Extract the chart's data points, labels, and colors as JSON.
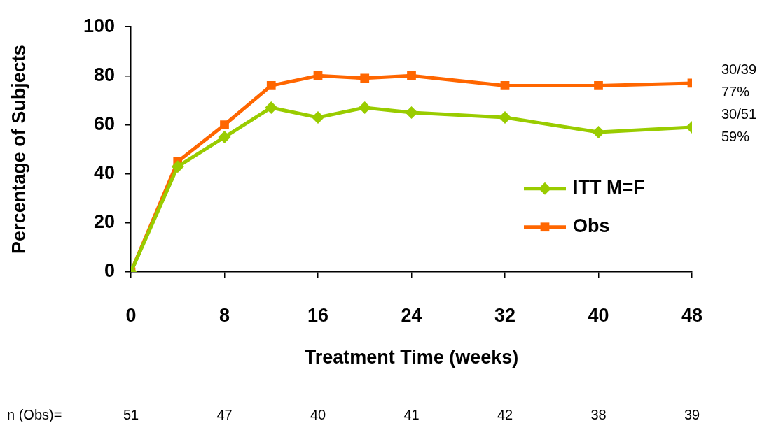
{
  "chart_data": {
    "type": "line",
    "xlabel": "Treatment Time (weeks)",
    "ylabel": "Percentage of Subjects",
    "x": [
      0,
      4,
      8,
      12,
      16,
      20,
      24,
      32,
      40,
      48
    ],
    "xlim": [
      0,
      48
    ],
    "xticks": [
      0,
      8,
      16,
      24,
      32,
      40,
      48
    ],
    "ylim": [
      0,
      100
    ],
    "yticks": [
      0,
      20,
      40,
      60,
      80,
      100
    ],
    "grid": false,
    "legend": "right",
    "line_style": "solid",
    "series": [
      {
        "name": "ITT M=F",
        "color": "#99cc00",
        "marker": "diamond",
        "values": [
          0,
          43,
          55,
          67,
          63,
          67,
          65,
          63,
          57,
          59
        ]
      },
      {
        "name": "Obs",
        "color": "#ff6600",
        "marker": "square",
        "values": [
          0,
          45,
          60,
          76,
          80,
          79,
          80,
          76,
          76,
          77
        ]
      }
    ],
    "annotations": [
      {
        "text": "30/39\n77%",
        "x": 48,
        "y": 77
      },
      {
        "text": "30/51\n59%",
        "x": 48,
        "y": 59
      },
      "n (Obs)=",
      "51",
      "47",
      "40",
      "41",
      "42",
      "38",
      "39"
    ]
  }
}
